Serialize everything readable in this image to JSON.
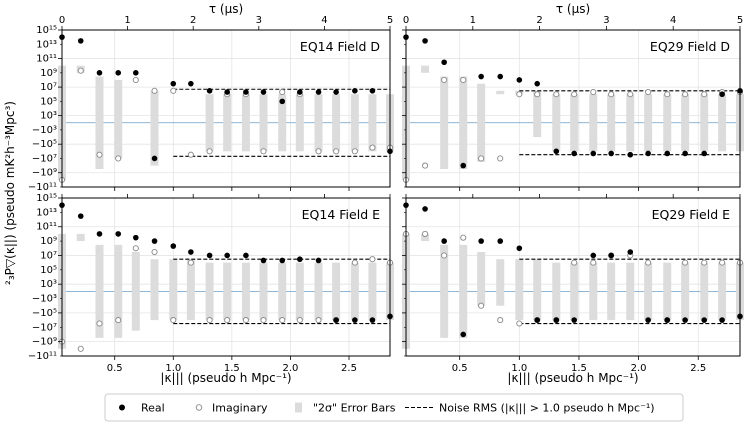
{
  "figure": {
    "top_axis_label": "τ (μs)",
    "bottom_axis_label": "|κ||| (pseudo h Mpc⁻¹)",
    "y_axis_label": "²₃P▽(κ||) (pseudo mK²h⁻³Mpc³)"
  },
  "axes": {
    "x_kpar": {
      "range": [
        0.05,
        2.85
      ],
      "ticks": [
        0.5,
        1.0,
        1.5,
        2.0,
        2.5
      ],
      "tick_labels": [
        "0.5",
        "1.0",
        "1.5",
        "2.0",
        "2.5"
      ]
    },
    "x_tau": {
      "range": [
        0,
        5
      ],
      "ticks": [
        0,
        1,
        2,
        3,
        4,
        5
      ],
      "tick_labels": [
        "0",
        "1",
        "2",
        "3",
        "4",
        "5"
      ]
    },
    "y": {
      "scale": "symlog",
      "range": [
        -100000000000.0,
        1000000000000000.0
      ],
      "ticks": [
        1000000000000000.0,
        100000000000.0,
        10000000.0,
        1000.0,
        -100000.0,
        -1000000000.0
      ],
      "minor_ticks": [
        10000000000000.0,
        1000000000.0,
        100000.0,
        -1000.0,
        -10000000.0,
        -100000000000.0
      ],
      "tick_labels": [
        "10¹⁵",
        "10¹¹",
        "10⁷",
        "10³",
        "−10⁵",
        "−10⁹"
      ],
      "minor_tick_labels": [
        "10¹³",
        "10⁹",
        "10⁵",
        "−10³",
        "−10⁷",
        "−10¹¹"
      ],
      "grid": true
    }
  },
  "legend": {
    "placement": "bottom",
    "items": [
      {
        "label": "Real",
        "marker": "filled-circle"
      },
      {
        "label": "Imaginary",
        "marker": "open-circle"
      },
      {
        "label": "\"2σ\" Error Bars",
        "marker": "gray-bar"
      },
      {
        "label": "Noise RMS (|κ||| > 1.0 pseudo h Mpc⁻¹)",
        "marker": "dashed-line"
      }
    ]
  },
  "colors": {
    "real": "#000000",
    "imag": "#888888",
    "errbar": "#dcdcdc",
    "zero_line": "#6a9ec8",
    "grid": "#e4e4e4"
  },
  "chart_data": [
    {
      "type": "scatter",
      "title": "EQ14 Field D",
      "x": [
        0.05,
        0.21,
        0.37,
        0.53,
        0.68,
        0.84,
        1.0,
        1.15,
        1.31,
        1.46,
        1.62,
        1.77,
        1.93,
        2.08,
        2.24,
        2.39,
        2.55,
        2.7,
        2.85
      ],
      "series": [
        {
          "name": "Real",
          "values": [
            100000000000000.0,
            30000000000000.0,
            1000000000.0,
            1000000000.0,
            1000000000.0,
            -10000000.0,
            30000000.0,
            30000000.0,
            3000000.0,
            2000000.0,
            2000000.0,
            2000000.0,
            100000.0,
            2000000.0,
            2000000.0,
            2000000.0,
            3000000.0,
            3000000.0,
            -1000000.0
          ]
        },
        {
          "name": "Imaginary",
          "values": [
            -10000000000.0,
            2000000000.0,
            -3000000.0,
            -10000000.0,
            100000000.0,
            3000000.0,
            3000000.0,
            -3000000.0,
            -1000000.0,
            1000000.0,
            1000000.0,
            -1000000.0,
            2000000.0,
            1000000.0,
            -1000000.0,
            -1000000.0,
            -1000000.0,
            -300000.0,
            -300000.0
          ]
        },
        {
          "name": "\"2σ\" Error Bars",
          "low": [
            -10000000000.0,
            1000000000.0,
            -300000000.0,
            -10000000.0,
            100000000.0,
            -100000000.0,
            3000000.0,
            3000000.0,
            -1000000.0,
            -1000000.0,
            -1000000.0,
            -1000000.0,
            -1000000.0,
            -1000000.0,
            -1000000.0,
            -1000000.0,
            -1000000.0,
            -1000000.0,
            -1000000.0
          ],
          "high": [
            10000000000.0,
            10000000000.0,
            300000000.0,
            100000000.0,
            100000000.0,
            3000000.0,
            3000000.0,
            3000000.0,
            1000000.0,
            1000000.0,
            1000000.0,
            1000000.0,
            1000000.0,
            1000000.0,
            1000000.0,
            1000000.0,
            1000000.0,
            1000000.0,
            1000000.0
          ]
        }
      ],
      "noise_rms": {
        "kpar_min": 1.0,
        "value": 5000000.0
      }
    },
    {
      "type": "scatter",
      "title": "EQ29 Field D",
      "x": [
        0.05,
        0.21,
        0.37,
        0.53,
        0.68,
        0.84,
        1.0,
        1.15,
        1.31,
        1.46,
        1.62,
        1.77,
        1.93,
        2.08,
        2.24,
        2.39,
        2.55,
        2.7,
        2.85
      ],
      "series": [
        {
          "name": "Real",
          "values": [
            100000000000000.0,
            30000000000000.0,
            30000000000.0,
            -100000000.0,
            300000000.0,
            300000000.0,
            100000000.0,
            30000000.0,
            -1000000.0,
            -2000000.0,
            -2000000.0,
            -2000000.0,
            -3000000.0,
            -2000000.0,
            -2000000.0,
            -2000000.0,
            -2000000.0,
            1000000.0,
            3000000.0
          ]
        },
        {
          "name": "Imaginary",
          "values": [
            -10000000000.0,
            -100000000.0,
            100000000.0,
            100000000.0,
            -10000000.0,
            -10000000.0,
            1000000.0,
            1000000.0,
            1000000.0,
            1000000.0,
            2000000.0,
            1000000.0,
            1000000.0,
            2000000.0,
            1000000.0,
            1000000.0,
            1000000.0,
            2000000.0,
            2000000.0
          ]
        },
        {
          "name": "\"2σ\" Error Bars",
          "low": [
            -10000000000.0,
            1000000000.0,
            -300000000.0,
            -300000000.0,
            -30000000.0,
            1000000.0,
            1000000.0,
            -10000.0,
            -1000000.0,
            -1000000.0,
            -1000000.0,
            -1000000.0,
            -1000000.0,
            -1000000.0,
            -1000000.0,
            -1000000.0,
            -1000000.0,
            -1000000.0,
            -1000000.0
          ],
          "high": [
            10000000000.0,
            10000000000.0,
            300000000.0,
            300000000.0,
            30000000.0,
            3000000.0,
            3000000.0,
            3000000.0,
            1000000.0,
            1000000.0,
            1000000.0,
            1000000.0,
            1000000.0,
            1000000.0,
            1000000.0,
            1000000.0,
            1000000.0,
            1000000.0,
            1000000.0
          ]
        }
      ],
      "noise_rms": {
        "kpar_min": 1.0,
        "value": 3000000.0
      }
    },
    {
      "type": "scatter",
      "title": "EQ14 Field E",
      "x": [
        0.05,
        0.21,
        0.37,
        0.53,
        0.68,
        0.84,
        1.0,
        1.15,
        1.31,
        1.46,
        1.62,
        1.77,
        1.93,
        2.08,
        2.24,
        2.39,
        2.55,
        2.7,
        2.85
      ],
      "series": [
        {
          "name": "Real",
          "values": [
            100000000000000.0,
            3000000000000.0,
            10000000000.0,
            10000000000.0,
            3000000000.0,
            1000000000.0,
            200000000.0,
            30000000.0,
            10000000.0,
            10000000.0,
            10000000.0,
            2000000.0,
            2000000.0,
            3000000.0,
            2000000.0,
            -1000000.0,
            -1000000.0,
            -1000000.0,
            -300000.0
          ]
        },
        {
          "name": "Imaginary",
          "values": [
            -1000000000.0,
            -10000000000.0,
            -3000000.0,
            -1000000.0,
            100000000.0,
            30000000.0,
            -1000000.0,
            1000000.0,
            -1000000.0,
            -1000000.0,
            -1000000.0,
            -1000000.0,
            -1000000.0,
            -1000000.0,
            -1000000.0,
            -1000000.0,
            1000000.0,
            3000000.0,
            1000000.0
          ]
        },
        {
          "name": "\"2σ\" Error Bars",
          "low": [
            -10000000000.0,
            1000000000.0,
            -300000000.0,
            -300000000.0,
            -30000000.0,
            -1000000.0,
            -1000000.0,
            -1000000.0,
            -1000000.0,
            -1000000.0,
            -1000000.0,
            -1000000.0,
            -1000000.0,
            -1000000.0,
            -1000000.0,
            -1000000.0,
            -1000000.0,
            -1000000.0,
            -1000000.0
          ],
          "high": [
            10000000000.0,
            10000000000.0,
            300000000.0,
            300000000.0,
            30000000.0,
            3000000.0,
            3000000.0,
            3000000.0,
            1000000.0,
            1000000.0,
            1000000.0,
            1000000.0,
            1000000.0,
            1000000.0,
            1000000.0,
            1000000.0,
            1000000.0,
            1000000.0,
            1000000.0
          ]
        }
      ],
      "noise_rms": {
        "kpar_min": 1.0,
        "value": 3000000.0
      }
    },
    {
      "type": "scatter",
      "title": "EQ29 Field E",
      "x": [
        0.05,
        0.21,
        0.37,
        0.53,
        0.68,
        0.84,
        1.0,
        1.15,
        1.31,
        1.46,
        1.62,
        1.77,
        1.93,
        2.08,
        2.24,
        2.39,
        2.55,
        2.7,
        2.85
      ],
      "series": [
        {
          "name": "Real",
          "values": [
            100000000000000.0,
            30000000000000.0,
            1000000000.0,
            -100000000.0,
            1000000000.0,
            1000000000.0,
            100000000.0,
            -1000000.0,
            -1000000.0,
            -1000000.0,
            10000000.0,
            10000000.0,
            30000000.0,
            -1000000.0,
            -1000000.0,
            -1000000.0,
            -1000000.0,
            -1000000.0,
            -300000.0
          ]
        },
        {
          "name": "Imaginary",
          "values": [
            10000000000.0,
            10000000000.0,
            10000000.0,
            3000000000.0,
            -10000.0,
            -1000000.0,
            -3000000.0,
            -1000000.0,
            -1000000.0,
            1000000.0,
            1000000.0,
            10000000.0,
            10000000.0,
            1000000.0,
            -1000000.0,
            1000000.0,
            1000000.0,
            1000000.0,
            1000000.0
          ]
        },
        {
          "name": "\"2σ\" Error Bars",
          "low": [
            -10000000000.0,
            1000000000.0,
            -300000000.0,
            -300000000.0,
            -10000.0,
            -10000.0,
            -1000000.0,
            -1000000.0,
            -1000000.0,
            -1000000.0,
            -1000000.0,
            -1000000.0,
            -1000000.0,
            -1000000.0,
            -1000000.0,
            -1000000.0,
            -1000000.0,
            -1000000.0,
            -1000000.0
          ],
          "high": [
            10000000000.0,
            10000000000.0,
            300000000.0,
            300000000.0,
            30000000.0,
            3000000.0,
            3000000.0,
            3000000.0,
            1000000.0,
            1000000.0,
            1000000.0,
            1000000.0,
            1000000.0,
            1000000.0,
            1000000.0,
            1000000.0,
            1000000.0,
            1000000.0,
            1000000.0
          ]
        }
      ],
      "noise_rms": {
        "kpar_min": 1.0,
        "value": 3000000.0
      }
    }
  ]
}
